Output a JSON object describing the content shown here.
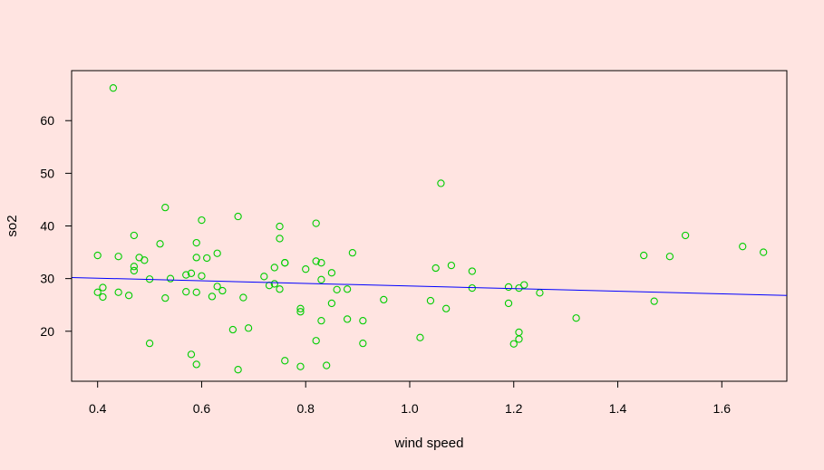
{
  "chart_data": {
    "type": "scatter",
    "xlabel": "wind speed",
    "ylabel": "so2",
    "xlim": [
      0.35,
      1.725
    ],
    "ylim": [
      10.5,
      69.5
    ],
    "x_ticks": [
      {
        "value": 0.4,
        "label": "0.4"
      },
      {
        "value": 0.6,
        "label": "0.6"
      },
      {
        "value": 0.8,
        "label": "0.8"
      },
      {
        "value": 1.0,
        "label": "1.0"
      },
      {
        "value": 1.2,
        "label": "1.2"
      },
      {
        "value": 1.4,
        "label": "1.4"
      },
      {
        "value": 1.6,
        "label": "1.6"
      }
    ],
    "y_ticks": [
      {
        "value": 20,
        "label": "20"
      },
      {
        "value": 30,
        "label": "30"
      },
      {
        "value": 40,
        "label": "40"
      },
      {
        "value": 50,
        "label": "50"
      },
      {
        "value": 60,
        "label": "60"
      }
    ],
    "points": [
      [
        0.43,
        66.2
      ],
      [
        0.4,
        34.4
      ],
      [
        0.4,
        27.4
      ],
      [
        0.41,
        28.3
      ],
      [
        0.41,
        26.5
      ],
      [
        0.44,
        34.2
      ],
      [
        0.44,
        27.4
      ],
      [
        0.46,
        26.8
      ],
      [
        0.47,
        38.2
      ],
      [
        0.47,
        32.3
      ],
      [
        0.47,
        31.5
      ],
      [
        0.48,
        34.0
      ],
      [
        0.49,
        33.5
      ],
      [
        0.5,
        29.9
      ],
      [
        0.5,
        17.7
      ],
      [
        0.52,
        36.6
      ],
      [
        0.53,
        43.5
      ],
      [
        0.53,
        26.3
      ],
      [
        0.54,
        30.0
      ],
      [
        0.57,
        30.7
      ],
      [
        0.57,
        27.5
      ],
      [
        0.58,
        31.0
      ],
      [
        0.58,
        15.6
      ],
      [
        0.59,
        36.8
      ],
      [
        0.59,
        34.0
      ],
      [
        0.59,
        27.4
      ],
      [
        0.59,
        13.7
      ],
      [
        0.6,
        41.1
      ],
      [
        0.6,
        30.5
      ],
      [
        0.61,
        33.9
      ],
      [
        0.62,
        26.6
      ],
      [
        0.63,
        34.8
      ],
      [
        0.63,
        28.5
      ],
      [
        0.64,
        27.7
      ],
      [
        0.66,
        20.3
      ],
      [
        0.67,
        41.8
      ],
      [
        0.67,
        12.7
      ],
      [
        0.68,
        26.4
      ],
      [
        0.69,
        20.6
      ],
      [
        0.72,
        30.4
      ],
      [
        0.73,
        28.7
      ],
      [
        0.74,
        32.1
      ],
      [
        0.74,
        29.0
      ],
      [
        0.75,
        39.9
      ],
      [
        0.75,
        37.6
      ],
      [
        0.75,
        28.0
      ],
      [
        0.76,
        33.0
      ],
      [
        0.76,
        33.0
      ],
      [
        0.76,
        14.4
      ],
      [
        0.79,
        24.3
      ],
      [
        0.79,
        23.7
      ],
      [
        0.79,
        13.3
      ],
      [
        0.8,
        31.8
      ],
      [
        0.82,
        40.5
      ],
      [
        0.82,
        33.3
      ],
      [
        0.82,
        18.2
      ],
      [
        0.83,
        33.0
      ],
      [
        0.83,
        29.8
      ],
      [
        0.83,
        22.0
      ],
      [
        0.84,
        13.5
      ],
      [
        0.85,
        31.1
      ],
      [
        0.85,
        25.3
      ],
      [
        0.86,
        27.9
      ],
      [
        0.88,
        28.0
      ],
      [
        0.88,
        22.3
      ],
      [
        0.89,
        34.9
      ],
      [
        0.91,
        22.0
      ],
      [
        0.91,
        17.7
      ],
      [
        0.95,
        26.0
      ],
      [
        1.02,
        18.8
      ],
      [
        1.04,
        25.8
      ],
      [
        1.05,
        32.0
      ],
      [
        1.06,
        48.1
      ],
      [
        1.07,
        24.3
      ],
      [
        1.08,
        32.5
      ],
      [
        1.12,
        31.4
      ],
      [
        1.12,
        28.2
      ],
      [
        1.19,
        28.4
      ],
      [
        1.19,
        25.3
      ],
      [
        1.2,
        17.6
      ],
      [
        1.21,
        19.8
      ],
      [
        1.21,
        28.2
      ],
      [
        1.21,
        18.5
      ],
      [
        1.22,
        28.8
      ],
      [
        1.25,
        27.3
      ],
      [
        1.32,
        22.5
      ],
      [
        1.45,
        34.4
      ],
      [
        1.47,
        25.7
      ],
      [
        1.5,
        34.2
      ],
      [
        1.53,
        38.2
      ],
      [
        1.64,
        36.1
      ],
      [
        1.68,
        35.0
      ]
    ],
    "regression_line": {
      "x": [
        0.35,
        1.725
      ],
      "y": [
        30.2,
        26.8
      ]
    },
    "colors": {
      "background": "#ffe4e1",
      "points": "#00cd00",
      "line": "#0000ff",
      "axis": "#000000"
    }
  }
}
